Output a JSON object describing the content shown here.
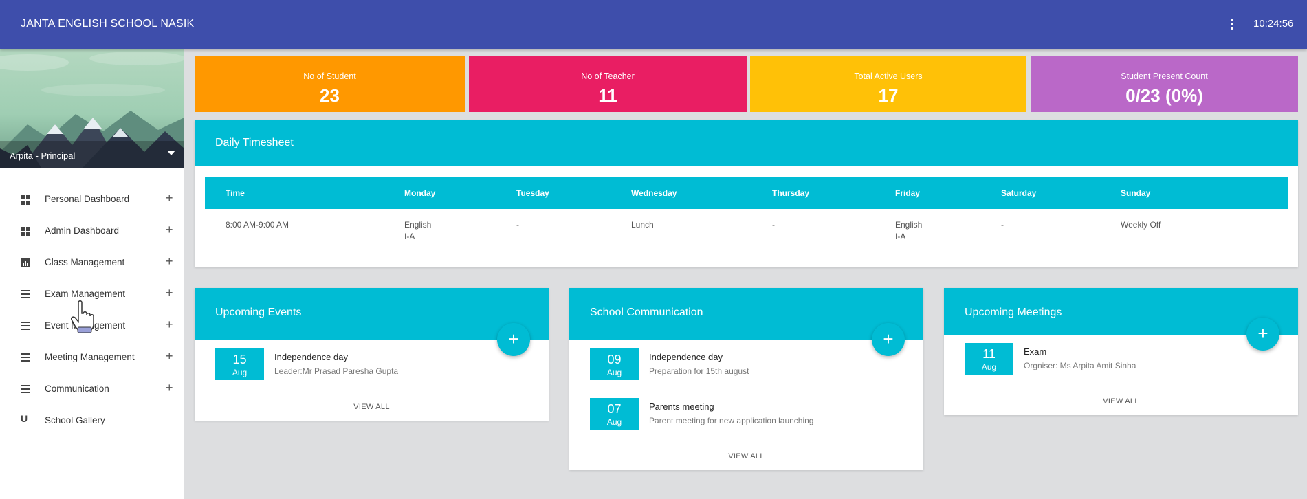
{
  "header": {
    "school_name": "JANTA ENGLISH SCHOOL NASIK",
    "time": "10:24:56"
  },
  "profile": {
    "user": "Arpita - Principal"
  },
  "menu": [
    {
      "label": "Personal Dashboard",
      "icon": "dashboard-icon",
      "plus": "+"
    },
    {
      "label": "Admin Dashboard",
      "icon": "dashboard-icon",
      "plus": "+"
    },
    {
      "label": "Class Management",
      "icon": "chart-icon",
      "plus": "+"
    },
    {
      "label": "Exam Management",
      "icon": "list-icon",
      "plus": "+"
    },
    {
      "label": "Event Management",
      "icon": "list-icon",
      "plus": "+"
    },
    {
      "label": "Meeting Management",
      "icon": "list-icon",
      "plus": "+"
    },
    {
      "label": "Communication",
      "icon": "list-icon",
      "plus": "+"
    },
    {
      "label": "School Gallery",
      "icon": "underline-icon",
      "plus": ""
    }
  ],
  "stats": [
    {
      "label": "No of Student",
      "value": "23",
      "color": "#ff9800"
    },
    {
      "label": "No of Teacher",
      "value": "11",
      "color": "#e91e63"
    },
    {
      "label": "Total Active Users",
      "value": "17",
      "color": "#ffc107"
    },
    {
      "label": "Student Present Count",
      "value": "0/23 (0%)",
      "color": "#ba68c8"
    }
  ],
  "timesheet": {
    "title": "Daily Timesheet",
    "headers": [
      "Time",
      "Monday",
      "Tuesday",
      "Wednesday",
      "Thursday",
      "Friday",
      "Saturday",
      "Sunday"
    ],
    "row": [
      {
        "line1": "8:00 AM-9:00 AM",
        "line2": ""
      },
      {
        "line1": "English",
        "line2": "I-A"
      },
      {
        "line1": "-",
        "line2": ""
      },
      {
        "line1": "Lunch",
        "line2": ""
      },
      {
        "line1": "-",
        "line2": ""
      },
      {
        "line1": "English",
        "line2": "I-A"
      },
      {
        "line1": "-",
        "line2": ""
      },
      {
        "line1": "Weekly Off",
        "line2": ""
      }
    ]
  },
  "events": {
    "title": "Upcoming Events",
    "add": "+",
    "items": [
      {
        "day": "15",
        "month": "Aug",
        "title": "Independence day",
        "sub": "Leader:Mr Prasad Paresha Gupta"
      }
    ],
    "view_all": "VIEW ALL"
  },
  "communication": {
    "title": "School Communication",
    "add": "+",
    "items": [
      {
        "day": "09",
        "month": "Aug",
        "title": "Independence day",
        "sub": "Preparation for 15th august"
      },
      {
        "day": "07",
        "month": "Aug",
        "title": "Parents meeting",
        "sub": "Parent meeting for new application launching"
      }
    ],
    "view_all": "VIEW ALL"
  },
  "meetings": {
    "title": "Upcoming Meetings",
    "add": "+",
    "items": [
      {
        "day": "11",
        "month": "Aug",
        "title": "Exam",
        "sub": "Orgniser: Ms Arpita Amit Sinha"
      }
    ],
    "view_all": "VIEW ALL"
  }
}
